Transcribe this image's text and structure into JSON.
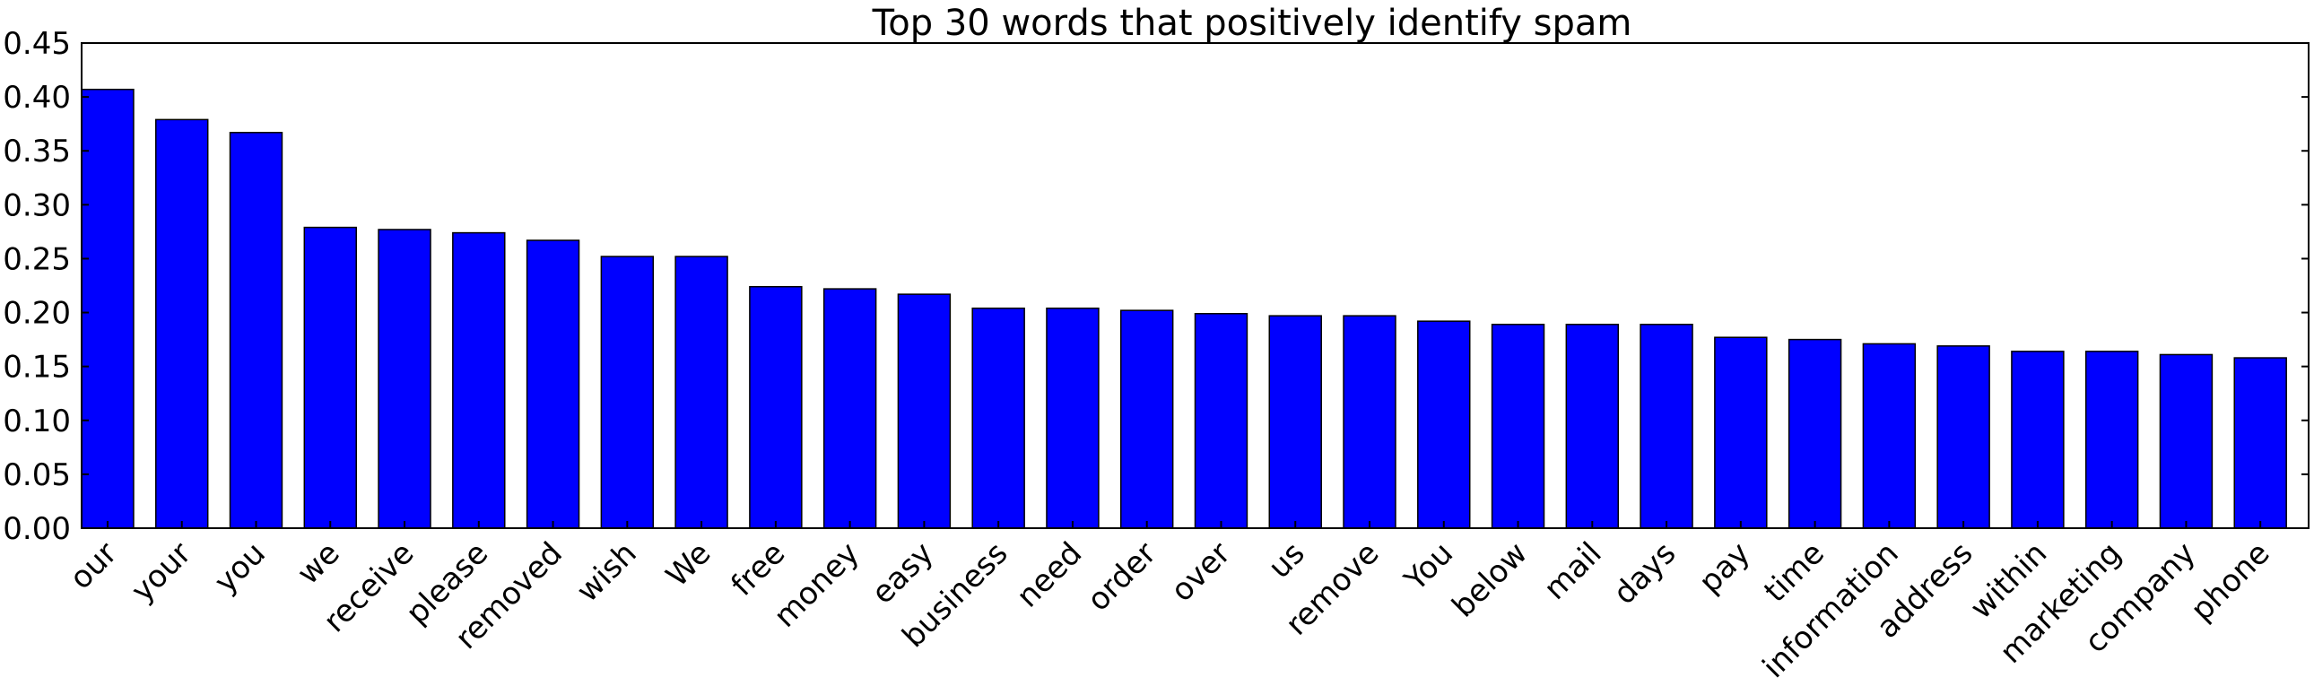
{
  "chart_data": {
    "type": "bar",
    "title": "Top 30 words that positively identify spam",
    "xlabel": "",
    "ylabel": "",
    "categories": [
      "our",
      "your",
      "you",
      "we",
      "receive",
      "please",
      "removed",
      "wish",
      "We",
      "free",
      "money",
      "easy",
      "business",
      "need",
      "order",
      "over",
      "us",
      "remove",
      "You",
      "below",
      "mail",
      "days",
      "pay",
      "time",
      "information",
      "address",
      "within",
      "marketing",
      "company",
      "phone"
    ],
    "values": [
      0.407,
      0.379,
      0.367,
      0.279,
      0.277,
      0.274,
      0.267,
      0.252,
      0.252,
      0.224,
      0.222,
      0.217,
      0.204,
      0.204,
      0.202,
      0.199,
      0.197,
      0.197,
      0.192,
      0.189,
      0.189,
      0.189,
      0.177,
      0.175,
      0.171,
      0.169,
      0.164,
      0.164,
      0.161,
      0.158
    ],
    "ylim": [
      0,
      0.45
    ],
    "yticks": [
      "0.00",
      "0.05",
      "0.10",
      "0.15",
      "0.20",
      "0.25",
      "0.30",
      "0.35",
      "0.40",
      "0.45"
    ],
    "bar_color": "#0000ff",
    "grid": false,
    "legend": "none"
  }
}
